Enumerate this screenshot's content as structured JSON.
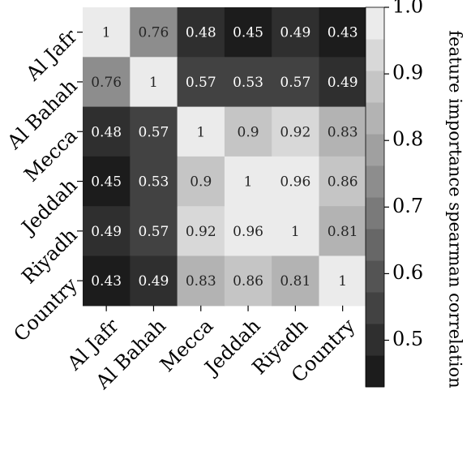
{
  "chart_data": {
    "type": "heatmap",
    "title": "",
    "row_labels": [
      "Al Jafr",
      "Al Bahah",
      "Mecca",
      "Jeddah",
      "Riyadh",
      "Country"
    ],
    "col_labels": [
      "Al Jafr",
      "Al Bahah",
      "Mecca",
      "Jeddah",
      "Riyadh",
      "Country"
    ],
    "values": [
      [
        1,
        0.76,
        0.48,
        0.45,
        0.49,
        0.43
      ],
      [
        0.76,
        1,
        0.57,
        0.53,
        0.57,
        0.49
      ],
      [
        0.48,
        0.57,
        1,
        0.9,
        0.92,
        0.83
      ],
      [
        0.45,
        0.53,
        0.9,
        1,
        0.96,
        0.86
      ],
      [
        0.49,
        0.57,
        0.92,
        0.96,
        1,
        0.81
      ],
      [
        0.43,
        0.49,
        0.83,
        0.86,
        0.81,
        1
      ]
    ],
    "cell_text": [
      [
        "1",
        "0.76",
        "0.48",
        "0.45",
        "0.49",
        "0.43"
      ],
      [
        "0.76",
        "1",
        "0.57",
        "0.53",
        "0.57",
        "0.49"
      ],
      [
        "0.48",
        "0.57",
        "1",
        "0.9",
        "0.92",
        "0.83"
      ],
      [
        "0.45",
        "0.53",
        "0.9",
        "1",
        "0.96",
        "0.86"
      ],
      [
        "0.49",
        "0.57",
        "0.92",
        "0.96",
        "1",
        "0.81"
      ],
      [
        "0.43",
        "0.49",
        "0.83",
        "0.86",
        "0.81",
        "1"
      ]
    ],
    "colorbar": {
      "label": "feature importance spearman correlation",
      "range": [
        0.43,
        1.0
      ],
      "ticks": [
        0.5,
        0.6,
        0.7,
        0.8,
        0.9,
        1.0
      ],
      "tick_labels": [
        "0.5",
        "0.6",
        "0.7",
        "0.8",
        "0.9",
        "1.0"
      ],
      "levels": 12
    },
    "colormap": "gray",
    "color_low": "#1c1c1c",
    "color_high": "#ebebeb"
  }
}
